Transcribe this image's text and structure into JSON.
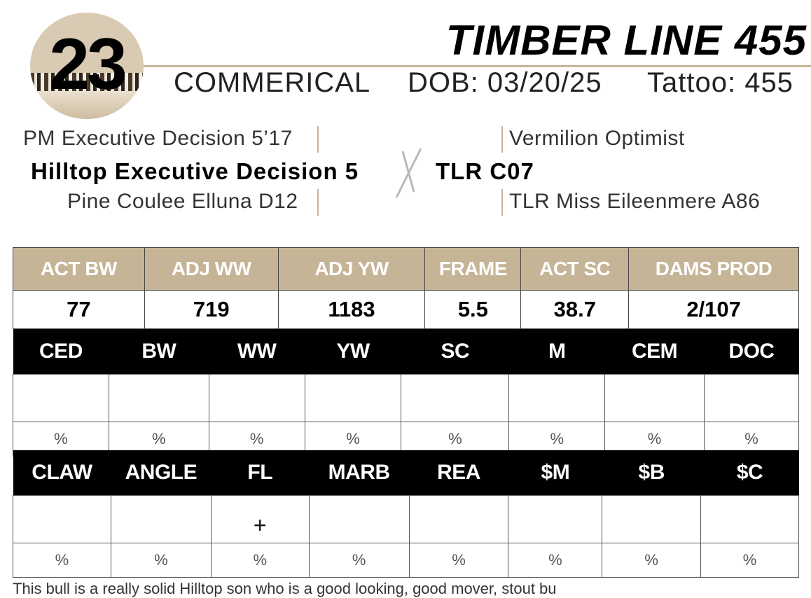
{
  "lot": {
    "number": "23"
  },
  "animal": {
    "name": "TIMBER LINE 455",
    "type": "COMMERICAL",
    "dob": "DOB: 03/20/25",
    "tattoo": "Tattoo: 455"
  },
  "pedigree": {
    "sire_sire": "PM Executive Decision 5’17",
    "sire": "Hilltop Executive Decision 5",
    "sire_dam": "Pine Coulee Elluna D12",
    "dam_sire": "Vermilion Optimist",
    "dam": "TLR C07",
    "dam_dam": "TLR Miss Eileenmere A86"
  },
  "performance": {
    "headers": [
      "ACT BW",
      "ADJ WW",
      "ADJ YW",
      "FRAME",
      "ACT SC",
      "DAMS PROD"
    ],
    "values": [
      "77",
      "719",
      "1183",
      "5.5",
      "38.7",
      "2/107"
    ]
  },
  "epd_row1": {
    "headers": [
      "CED",
      "BW",
      "WW",
      "YW",
      "SC",
      "M",
      "CEM",
      "DOC"
    ],
    "values": [
      "",
      "",
      "",
      "",
      "",
      "",
      "",
      ""
    ],
    "percent": [
      "%",
      "%",
      "%",
      "%",
      "%",
      "%",
      "%",
      "%"
    ]
  },
  "epd_row2": {
    "headers": [
      "CLAW",
      "ANGLE",
      "FL",
      "MARB",
      "REA",
      "$M",
      "$B",
      "$C"
    ],
    "values": [
      "",
      "",
      "+",
      "",
      "",
      "",
      "",
      ""
    ],
    "percent": [
      "%",
      "%",
      "%",
      "%",
      "%",
      "%",
      "%",
      "%"
    ]
  },
  "description": "This bull is a really solid Hilltop son who is a good looking, good mover, stout bu",
  "colors": {
    "accent_tan": "#c6b497",
    "header_black": "#000000"
  }
}
